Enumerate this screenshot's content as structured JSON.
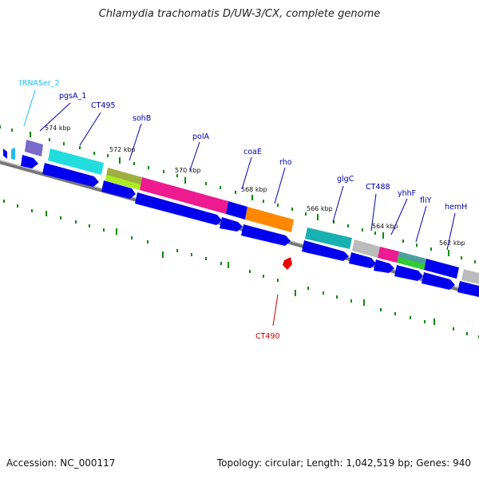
{
  "title": "Chlamydia trachomatis D/UW-3/CX, complete genome",
  "footer": {
    "accession": "Accession: NC_000117",
    "summary": "Topology: circular; Length: 1,042,519 bp; Genes: 940"
  },
  "colors": {
    "label_default": "#0000aa",
    "label_trna": "#22bbee",
    "label_reverse": "#cc0000",
    "backbone": "#777777",
    "tick": "#118811",
    "gene_blue": "#0000ee"
  },
  "scale_labels": [
    "574 kbp",
    "572 kbp",
    "570 kbp",
    "568 kbp",
    "566 kbp",
    "564 kbp",
    "562 kbp"
  ],
  "gene_labels": [
    {
      "text": "tRNASer_2",
      "kind": "trna"
    },
    {
      "text": "pgsA_1",
      "kind": "default"
    },
    {
      "text": "CT495",
      "kind": "default"
    },
    {
      "text": "sohB",
      "kind": "default"
    },
    {
      "text": "polA",
      "kind": "default"
    },
    {
      "text": "coaE",
      "kind": "default"
    },
    {
      "text": "rho",
      "kind": "default"
    },
    {
      "text": "glgC",
      "kind": "default"
    },
    {
      "text": "CT488",
      "kind": "default"
    },
    {
      "text": "yhhF",
      "kind": "default"
    },
    {
      "text": "fliY",
      "kind": "default"
    },
    {
      "text": "hemH",
      "kind": "default"
    },
    {
      "text": "CT490",
      "kind": "reverse"
    }
  ]
}
